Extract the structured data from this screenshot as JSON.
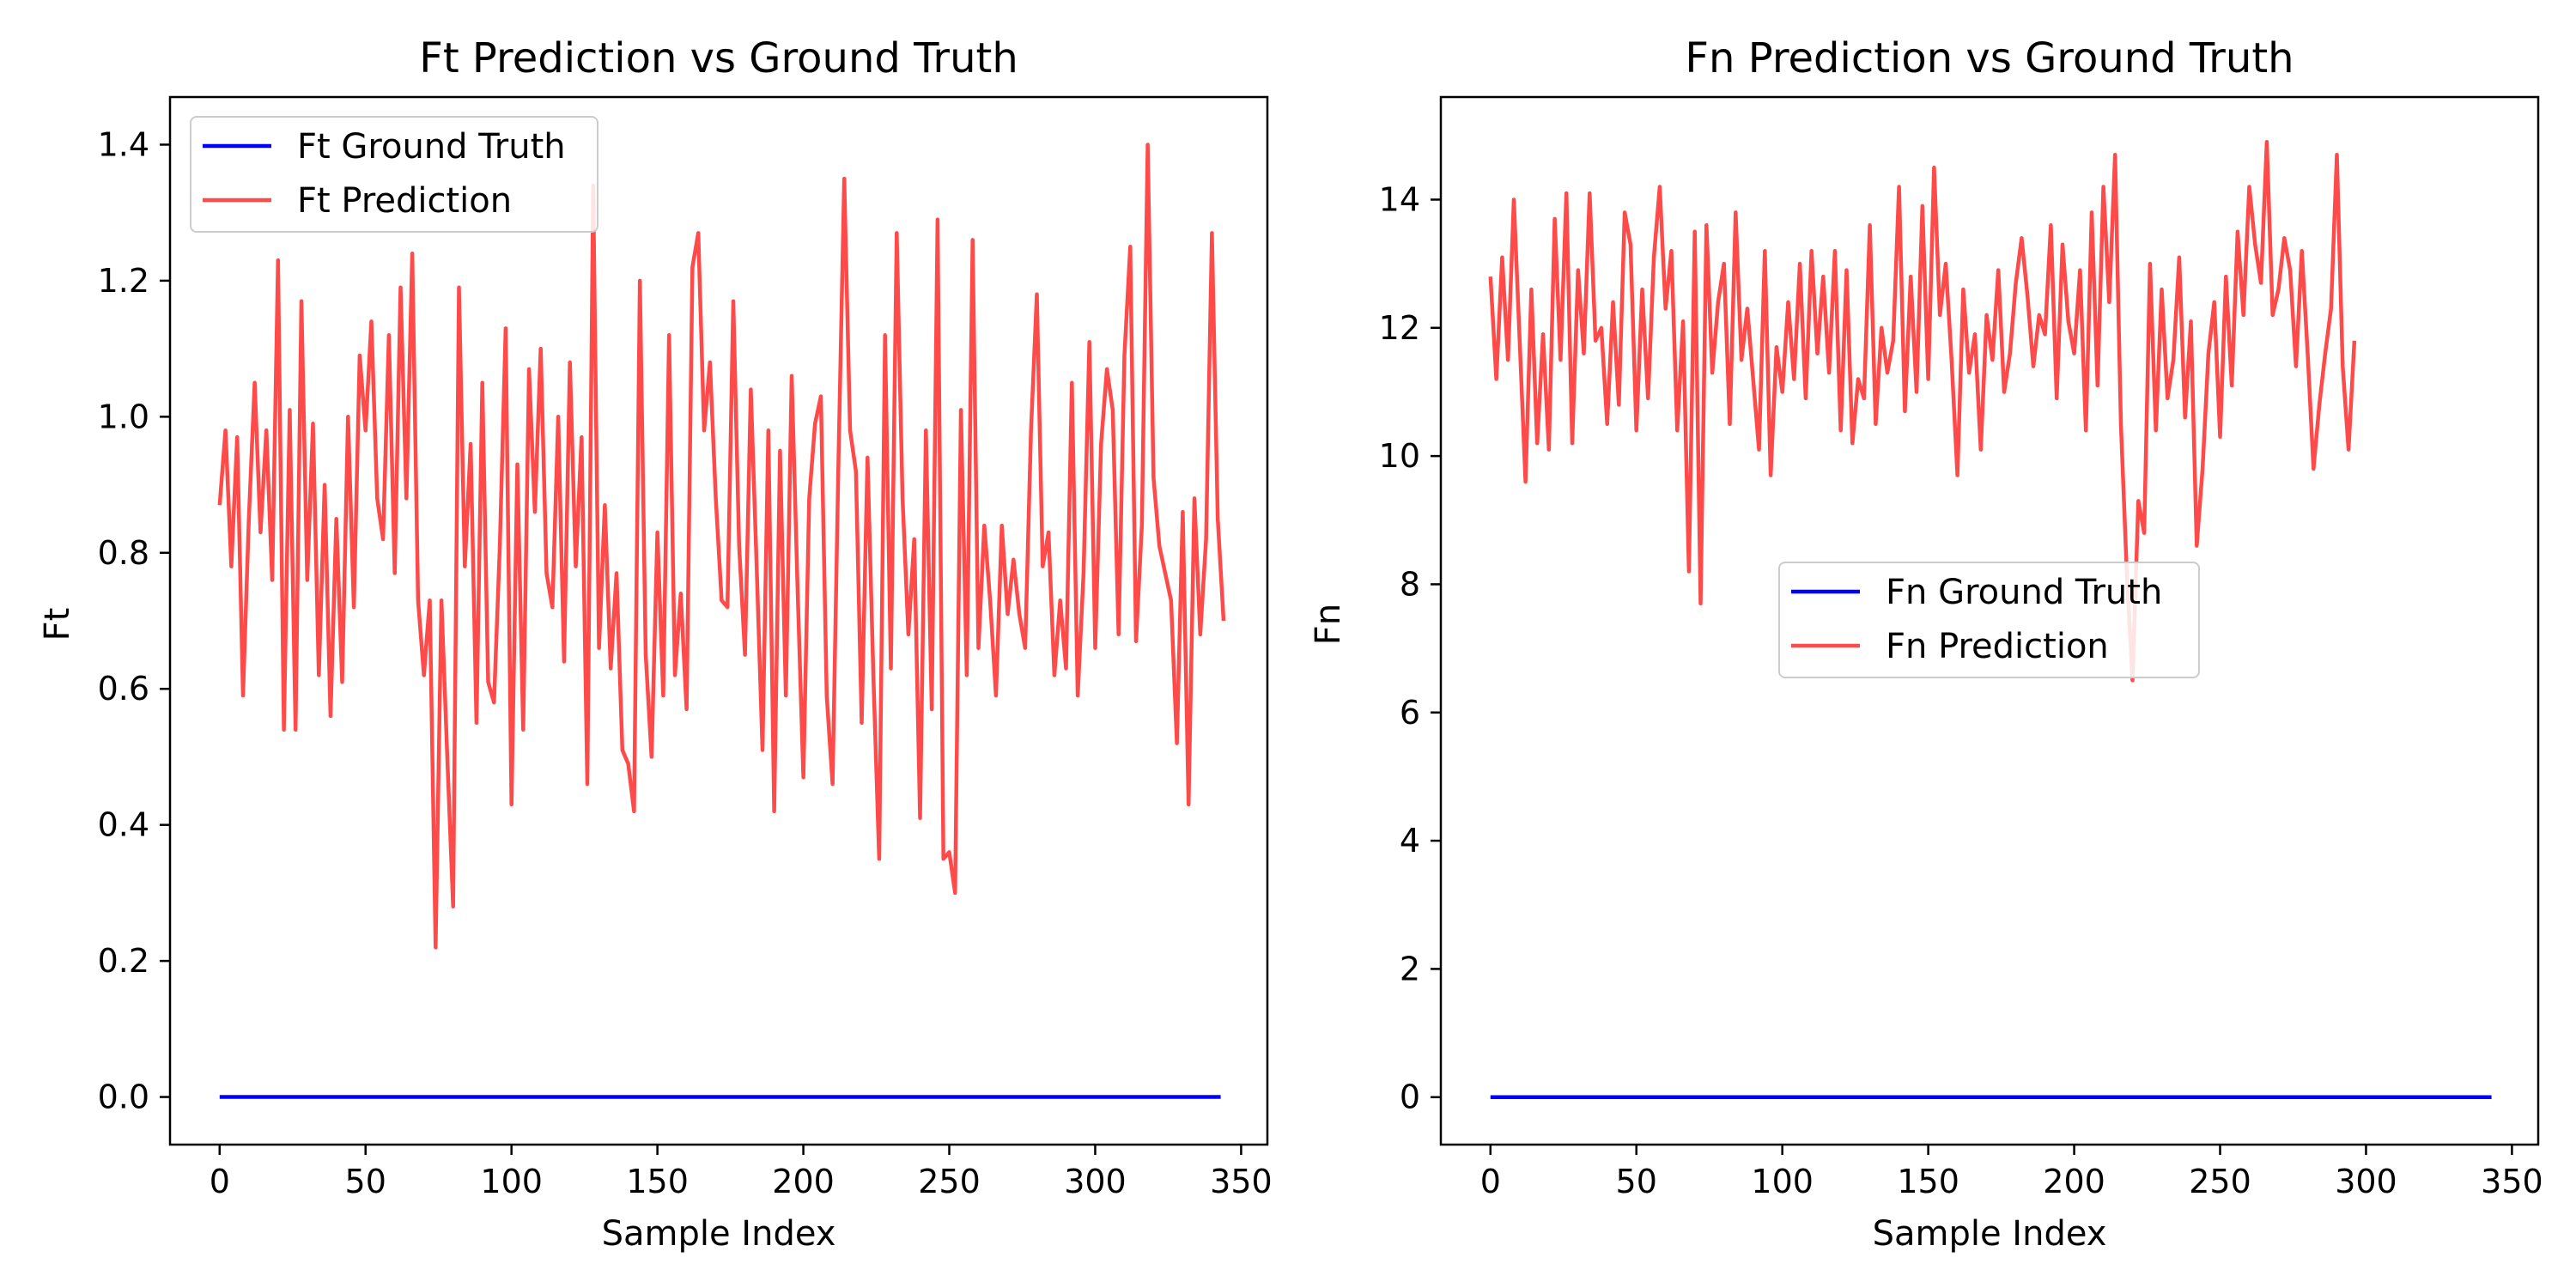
{
  "colors": {
    "ground_truth": "#0000ff",
    "prediction": "#ff4a4a",
    "axes": "#000000",
    "background": "#ffffff"
  },
  "chart_data": [
    {
      "type": "line",
      "title": "Ft Prediction vs Ground Truth",
      "xlabel": "Sample Index",
      "ylabel": "Ft",
      "xlim": [
        -17,
        359
      ],
      "ylim": [
        -0.07,
        1.47
      ],
      "xticks": [
        0,
        50,
        100,
        150,
        200,
        250,
        300,
        350
      ],
      "yticks": [
        0.0,
        0.2,
        0.4,
        0.6,
        0.8,
        1.0,
        1.2,
        1.4
      ],
      "ytick_labels": [
        "0.0",
        "0.2",
        "0.4",
        "0.6",
        "0.8",
        "1.0",
        "1.2",
        "1.4"
      ],
      "legend": "top-left",
      "grid": false,
      "series": [
        {
          "name": "Ft Ground Truth",
          "color": "#0000ff",
          "sample_step": 1,
          "x": [
            0,
            343
          ],
          "y": [
            0,
            0
          ]
        },
        {
          "name": "Ft Prediction",
          "color": "#ff4a4a",
          "sample_step": 2,
          "y": [
            0.87,
            0.98,
            0.78,
            0.97,
            0.59,
            0.85,
            1.05,
            0.83,
            0.98,
            0.76,
            1.23,
            0.54,
            1.01,
            0.54,
            1.17,
            0.76,
            0.99,
            0.62,
            0.9,
            0.56,
            0.85,
            0.61,
            1.0,
            0.72,
            1.09,
            0.98,
            1.14,
            0.88,
            0.82,
            1.12,
            0.77,
            1.19,
            0.88,
            1.24,
            0.73,
            0.62,
            0.73,
            0.22,
            0.73,
            0.5,
            0.28,
            1.19,
            0.78,
            0.96,
            0.55,
            1.05,
            0.61,
            0.58,
            0.81,
            1.13,
            0.43,
            0.93,
            0.54,
            1.07,
            0.86,
            1.1,
            0.77,
            0.72,
            1.0,
            0.64,
            1.08,
            0.78,
            0.97,
            0.46,
            1.34,
            0.66,
            0.87,
            0.63,
            0.77,
            0.51,
            0.49,
            0.42,
            1.2,
            0.65,
            0.5,
            0.83,
            0.59,
            1.12,
            0.62,
            0.74,
            0.57,
            1.22,
            1.27,
            0.98,
            1.08,
            0.88,
            0.73,
            0.72,
            1.17,
            0.81,
            0.65,
            1.04,
            0.78,
            0.51,
            0.98,
            0.42,
            0.95,
            0.59,
            1.06,
            0.75,
            0.47,
            0.88,
            0.99,
            1.03,
            0.59,
            0.46,
            0.93,
            1.35,
            0.98,
            0.92,
            0.55,
            0.94,
            0.62,
            0.35,
            1.12,
            0.63,
            1.27,
            0.88,
            0.68,
            0.82,
            0.41,
            0.98,
            0.57,
            1.29,
            0.35,
            0.36,
            0.3,
            1.01,
            0.62,
            1.26,
            0.66,
            0.84,
            0.73,
            0.59,
            0.84,
            0.71,
            0.79,
            0.71,
            0.66,
            0.98,
            1.18,
            0.78,
            0.83,
            0.62,
            0.73,
            0.63,
            1.05,
            0.59,
            0.77,
            1.11,
            0.66,
            0.96,
            1.07,
            1.01,
            0.68,
            1.09,
            1.25,
            0.67,
            0.84,
            1.4,
            0.91,
            0.81,
            0.77,
            0.73,
            0.52,
            0.86,
            0.43,
            0.88,
            0.68,
            0.82,
            1.27,
            0.85,
            0.7
          ]
        }
      ]
    },
    {
      "type": "line",
      "title": "Fn Prediction vs Ground Truth",
      "xlabel": "Sample Index",
      "ylabel": "Fn",
      "xlim": [
        -17,
        359
      ],
      "ylim": [
        -0.74,
        15.6
      ],
      "xticks": [
        0,
        50,
        100,
        150,
        200,
        250,
        300,
        350
      ],
      "yticks": [
        0,
        2,
        4,
        6,
        8,
        10,
        12,
        14
      ],
      "ytick_labels": [
        "0",
        "2",
        "4",
        "6",
        "8",
        "10",
        "12",
        "14"
      ],
      "legend": "center",
      "grid": false,
      "series": [
        {
          "name": "Fn Ground Truth",
          "color": "#0000ff",
          "sample_step": 1,
          "x": [
            0,
            343
          ],
          "y": [
            0,
            0
          ]
        },
        {
          "name": "Fn Prediction",
          "color": "#ff4a4a",
          "sample_step": 2,
          "y": [
            12.8,
            11.2,
            13.1,
            11.5,
            14.0,
            11.8,
            9.6,
            12.6,
            10.2,
            11.9,
            10.1,
            13.7,
            11.5,
            14.1,
            10.2,
            12.9,
            11.6,
            14.1,
            11.8,
            12.0,
            10.5,
            12.4,
            10.8,
            13.8,
            13.3,
            10.4,
            12.6,
            10.9,
            13.1,
            14.2,
            12.3,
            13.2,
            10.4,
            12.1,
            8.2,
            13.5,
            7.7,
            13.6,
            11.3,
            12.4,
            13.0,
            10.5,
            13.8,
            11.5,
            12.3,
            11.2,
            10.1,
            13.2,
            9.7,
            11.7,
            11.0,
            12.4,
            11.2,
            13.0,
            10.9,
            13.2,
            11.6,
            12.8,
            11.3,
            13.2,
            10.4,
            12.9,
            10.2,
            11.2,
            10.9,
            13.6,
            10.5,
            12.0,
            11.3,
            11.8,
            14.2,
            10.7,
            12.8,
            11.0,
            13.9,
            11.2,
            14.5,
            12.2,
            13.0,
            11.5,
            9.7,
            12.6,
            11.3,
            11.9,
            10.1,
            12.2,
            11.5,
            12.9,
            11.0,
            11.6,
            12.7,
            13.4,
            12.5,
            11.4,
            12.2,
            11.9,
            13.6,
            10.9,
            13.3,
            12.1,
            11.6,
            12.9,
            10.4,
            13.8,
            11.1,
            14.2,
            12.4,
            14.7,
            10.5,
            8.2,
            6.5,
            9.3,
            8.8,
            13.0,
            10.4,
            12.6,
            10.9,
            11.5,
            13.1,
            10.6,
            12.1,
            8.6,
            9.8,
            11.6,
            12.4,
            10.3,
            12.8,
            11.1,
            13.5,
            12.2,
            14.2,
            13.3,
            12.7,
            14.9,
            12.2,
            12.6,
            13.4,
            12.9,
            11.4,
            13.2,
            11.6,
            9.8,
            10.8,
            11.6,
            12.3,
            14.7,
            11.4,
            10.1,
            11.8
          ]
        }
      ]
    }
  ]
}
